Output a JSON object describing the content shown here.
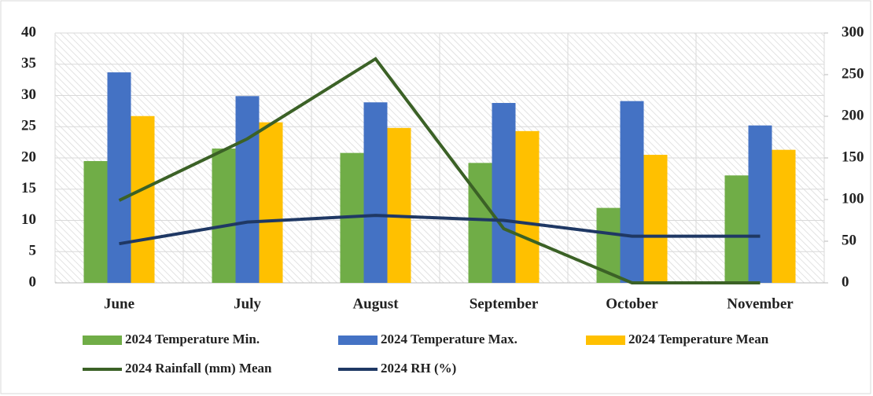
{
  "chart_data": {
    "type": "bar",
    "categories": [
      "June",
      "July",
      "August",
      "September",
      "October",
      "November"
    ],
    "series": [
      {
        "name": "2024 Temperature Min.",
        "type": "bar",
        "color": "#70ad47",
        "values": [
          19.5,
          21.5,
          20.8,
          19.2,
          12,
          17.2
        ]
      },
      {
        "name": "2024 Temperature Max.",
        "type": "bar",
        "color": "#4472c4",
        "values": [
          33.7,
          29.9,
          28.9,
          28.8,
          29.1,
          25.2
        ]
      },
      {
        "name": "2024 Temperature Mean",
        "type": "bar",
        "color": "#ffc000",
        "values": [
          26.7,
          25.7,
          24.8,
          24.3,
          20.5,
          21.3
        ]
      },
      {
        "name": "2024 Rainfall (mm) Mean",
        "type": "line",
        "axis": "y2",
        "color": "#3b6126",
        "values": [
          99,
          173,
          269,
          65,
          0,
          0
        ]
      },
      {
        "name": "2024 RH  (%)",
        "type": "line",
        "axis": "y2",
        "color": "#1f3864",
        "values": [
          47,
          73,
          81,
          75,
          56,
          56
        ]
      }
    ],
    "ylim": [
      0,
      40
    ],
    "yticks": [
      0,
      5,
      10,
      15,
      20,
      25,
      30,
      35,
      40
    ],
    "y2lim": [
      0,
      300
    ],
    "y2ticks": [
      0,
      50,
      100,
      150,
      200,
      250,
      300
    ],
    "grid": true,
    "legend": "bottom"
  }
}
